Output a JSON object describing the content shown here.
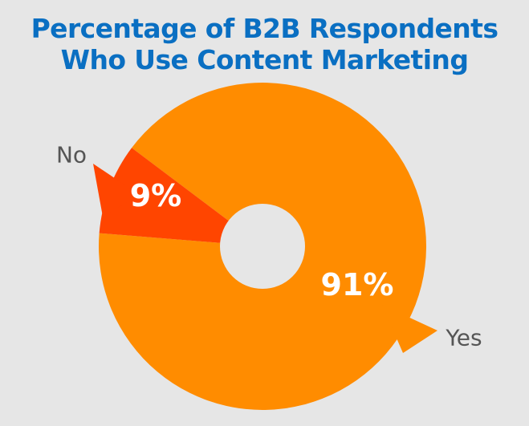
{
  "chart_data": {
    "type": "pie",
    "title": "Percentage of B2B Respondents\nWho Use Content Marketing",
    "title_lines": [
      "Percentage of B2B Respondents",
      "Who Use Content Marketing"
    ],
    "slices": [
      {
        "name": "Yes",
        "value": 91,
        "label": "91%",
        "color": "#ff8c00"
      },
      {
        "name": "No",
        "value": 9,
        "label": "9%",
        "color": "#ff4500"
      }
    ]
  },
  "colors": {
    "background": "#e6e6e6",
    "title": "#0a6fc2",
    "category_label": "#555555",
    "slice_label": "#ffffff"
  }
}
